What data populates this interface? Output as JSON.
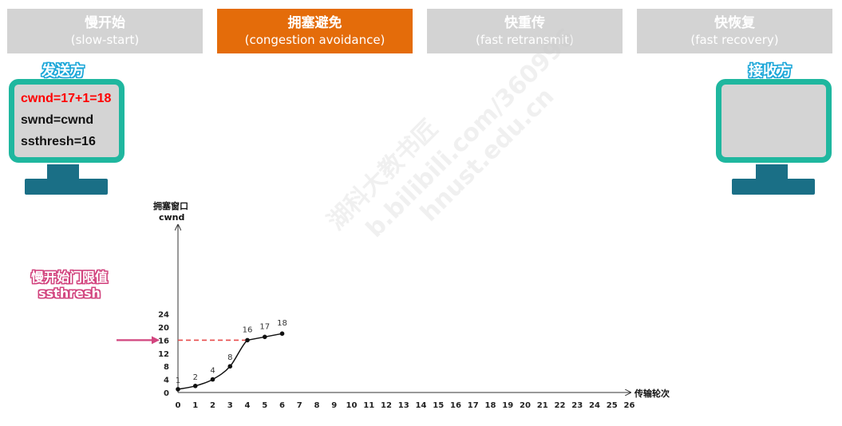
{
  "phases": [
    {
      "cn": "慢开始",
      "en": "(slow-start)",
      "active": false
    },
    {
      "cn": "拥塞避免",
      "en": "(congestion avoidance)",
      "active": true
    },
    {
      "cn": "快重传",
      "en": "(fast retransmit)",
      "active": false
    },
    {
      "cn": "快恢复",
      "en": "(fast recovery)",
      "active": false
    }
  ],
  "colors": {
    "phase_inactive": "#d3d3d3",
    "phase_active": "#e46c0a",
    "monitor_frame": "#1fb79f",
    "monitor_stand": "#1a6f86",
    "label_blue": "#1ba6d8",
    "ssthresh_pink": "#d2457f",
    "threshold_line": "#e84b4b",
    "cwnd_red": "#ff0000"
  },
  "sender": {
    "label": "发送方",
    "lines": [
      "cwnd=17+1=18",
      "swnd=cwnd",
      "ssthresh=16"
    ]
  },
  "receiver": {
    "label": "接收方"
  },
  "watermark": [
    "湖科大教书匠",
    "b.bilibili.com/360996",
    "hnust.edu.cn"
  ],
  "ssthresh_annotation": [
    "慢开始门限值",
    "ssthresh"
  ],
  "chart_data": {
    "type": "line",
    "ylabel": [
      "拥塞窗口",
      "cwnd"
    ],
    "xlabel": "传输轮次",
    "x_ticks": [
      0,
      1,
      2,
      3,
      4,
      5,
      6,
      7,
      8,
      9,
      10,
      11,
      12,
      13,
      14,
      15,
      16,
      17,
      18,
      19,
      20,
      21,
      22,
      23,
      24,
      25,
      26
    ],
    "y_ticks": [
      0,
      4,
      8,
      12,
      16,
      20,
      24
    ],
    "xlim": [
      0,
      26
    ],
    "ylim": [
      0,
      24
    ],
    "series": [
      {
        "x": [
          0,
          1,
          2,
          3,
          4,
          5,
          6
        ],
        "values": [
          1,
          2,
          4,
          8,
          16,
          17,
          18
        ],
        "point_labels": [
          "1",
          "2",
          "4",
          "8",
          "16",
          "17",
          "18"
        ]
      }
    ],
    "threshold": {
      "value": 16,
      "x_range": [
        0,
        4
      ]
    }
  }
}
